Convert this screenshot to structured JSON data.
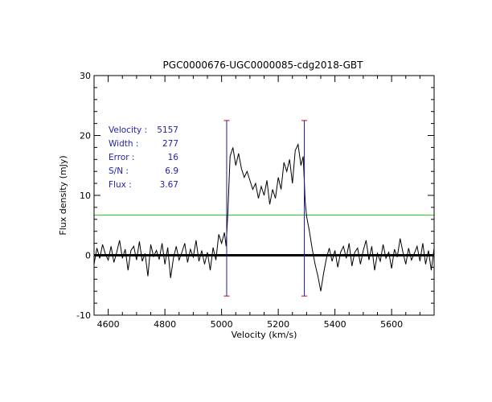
{
  "chart_data": {
    "type": "line",
    "title": "PGC0000676-UGC0000085-cdg2018-GBT",
    "xlabel": "Velocity (km/s)",
    "ylabel": "Flux density (mJy)",
    "xlim": [
      4550,
      5750
    ],
    "ylim": [
      -10,
      30
    ],
    "x_ticks": [
      4600,
      4800,
      5000,
      5200,
      5400,
      5600
    ],
    "y_ticks": [
      -10,
      0,
      10,
      20,
      30
    ],
    "colors": {
      "spectrum": "#000000",
      "baseline": "#000000",
      "threshold": "#33cc33",
      "markers": "#1a1aa8",
      "marker_caps": "#cc0000",
      "info_text": "#2222aa"
    },
    "info": [
      {
        "label": "Velocity :",
        "value": "5157"
      },
      {
        "label": "Width    :",
        "value": "277"
      },
      {
        "label": "Error    :",
        "value": "16"
      },
      {
        "label": "S/N      :",
        "value": "6.9"
      },
      {
        "label": "Flux     :",
        "value": "3.67"
      }
    ],
    "threshold_level": 6.7,
    "zero_level": 0,
    "markers": [
      {
        "x": 5018,
        "y_top": 22.5,
        "y_bottom": -6.8
      },
      {
        "x": 5292,
        "y_top": 22.5,
        "y_bottom": -6.8
      }
    ],
    "series": [
      {
        "x": [
          4550,
          4560,
          4570,
          4580,
          4590,
          4600,
          4610,
          4620,
          4630,
          4640,
          4650,
          4660,
          4670,
          4680,
          4690,
          4700,
          4710,
          4720,
          4730,
          4740,
          4750,
          4760,
          4770,
          4780,
          4790,
          4800,
          4810,
          4820,
          4830,
          4840,
          4850,
          4860,
          4870,
          4880,
          4890,
          4900,
          4910,
          4920,
          4930,
          4940,
          4950,
          4960,
          4970,
          4980,
          4990,
          5000,
          5010,
          5016,
          5022,
          5030,
          5040,
          5050,
          5060,
          5070,
          5080,
          5090,
          5100,
          5110,
          5120,
          5130,
          5140,
          5150,
          5160,
          5170,
          5180,
          5190,
          5200,
          5210,
          5220,
          5230,
          5240,
          5250,
          5260,
          5270,
          5280,
          5288,
          5295,
          5300,
          5310,
          5320,
          5330,
          5340,
          5350,
          5360,
          5370,
          5380,
          5390,
          5400,
          5410,
          5420,
          5430,
          5440,
          5450,
          5460,
          5470,
          5480,
          5490,
          5500,
          5510,
          5520,
          5530,
          5540,
          5550,
          5560,
          5570,
          5580,
          5590,
          5600,
          5610,
          5620,
          5630,
          5640,
          5650,
          5660,
          5670,
          5680,
          5690,
          5700,
          5710,
          5720,
          5730,
          5740,
          5750
        ],
        "y": [
          -1.5,
          1.2,
          -0.5,
          1.8,
          0.2,
          -0.8,
          1.5,
          -1.2,
          0.5,
          2.5,
          -0.5,
          1.0,
          -2.5,
          0.8,
          1.5,
          -0.8,
          2.3,
          -1.0,
          0.3,
          -3.5,
          1.8,
          -0.2,
          0.8,
          -0.7,
          2.0,
          -1.5,
          1.3,
          -3.8,
          -0.5,
          1.5,
          -0.8,
          0.5,
          2.0,
          -1.2,
          1.0,
          -0.3,
          2.5,
          -1.0,
          0.8,
          -1.5,
          0.5,
          -2.5,
          1.3,
          -0.8,
          3.5,
          2.0,
          3.8,
          1.5,
          7.0,
          16.5,
          18.0,
          15.0,
          17.0,
          14.5,
          13.0,
          14.0,
          12.5,
          11.0,
          12.0,
          9.5,
          11.5,
          10.0,
          12.5,
          8.5,
          11.0,
          9.5,
          13.0,
          11.0,
          15.5,
          14.0,
          16.0,
          12.0,
          17.5,
          18.5,
          15.0,
          16.5,
          9.0,
          6.5,
          4.0,
          1.0,
          -1.5,
          -3.5,
          -6.0,
          -3.0,
          -0.5,
          1.2,
          -1.0,
          0.8,
          -2.0,
          0.5,
          1.5,
          -0.5,
          2.0,
          -1.8,
          0.5,
          1.2,
          -1.5,
          0.8,
          2.5,
          -0.8,
          1.5,
          -2.5,
          0.3,
          -1.0,
          1.8,
          -0.5,
          0.5,
          -2.2,
          1.0,
          -0.3,
          2.8,
          0.5,
          -1.5,
          1.2,
          -0.8,
          0.3,
          1.5,
          -1.0,
          2.0,
          -1.5,
          0.8,
          -2.5,
          1.2
        ]
      }
    ]
  }
}
